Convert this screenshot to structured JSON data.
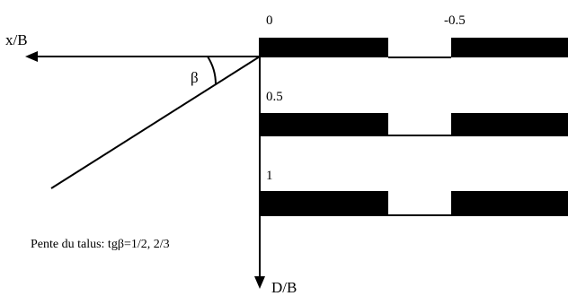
{
  "axes": {
    "horizontal_label": "x/B",
    "vertical_label": "D/B"
  },
  "angle_label": "β",
  "caption": "Pente du talus: tgβ=1/2, 2/3",
  "offset_labels": [
    "0",
    "-0.5"
  ],
  "depth_levels": [
    {
      "label": "0"
    },
    {
      "label": "0.5"
    },
    {
      "label": "1"
    }
  ],
  "colors": {
    "ink": "#000000",
    "background": "#ffffff"
  }
}
